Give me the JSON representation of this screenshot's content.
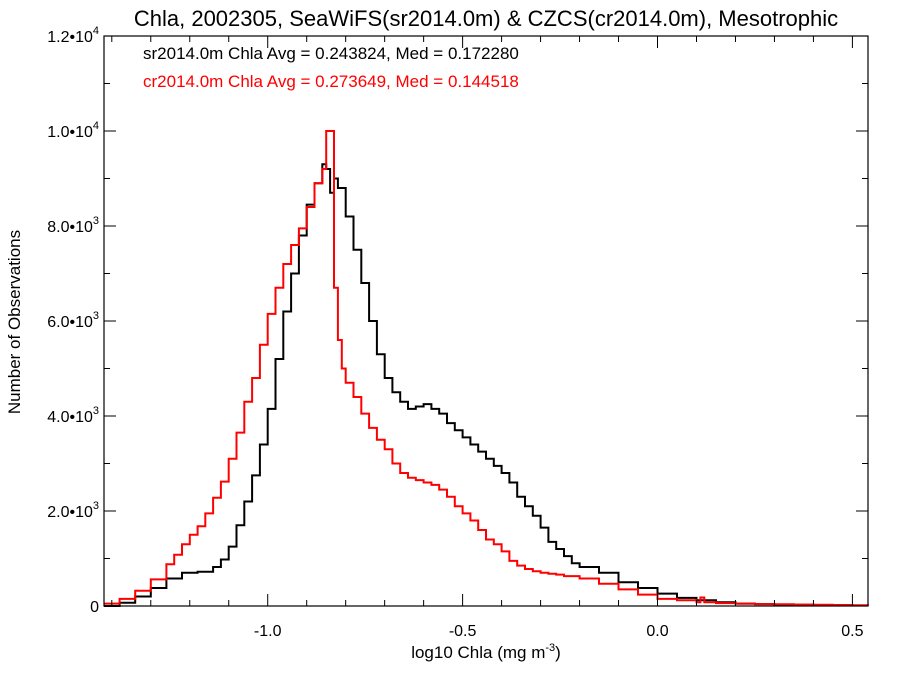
{
  "chart_data": {
    "type": "line",
    "title": "Chla, 2002305, SeaWiFS(sr2014.0m) & CZCS(cr2014.0m), Mesotrophic",
    "xlabel": "log10 Chla (mg m",
    "xlabel_sup": "-3",
    "xlabel_close": ")",
    "ylabel": "Number of Observations",
    "xlim": [
      -1.42,
      0.54
    ],
    "ylim": [
      0,
      12000
    ],
    "x_ticks": [
      {
        "value": -1.0,
        "label": "-1.0"
      },
      {
        "value": -0.5,
        "label": "-0.5"
      },
      {
        "value": 0.0,
        "label": "0.0"
      },
      {
        "value": 0.5,
        "label": "0.5"
      }
    ],
    "y_ticks": [
      {
        "value": 0,
        "label": "0",
        "sup": ""
      },
      {
        "value": 2000,
        "label": "2.0•10",
        "sup": "3"
      },
      {
        "value": 4000,
        "label": "4.0•10",
        "sup": "3"
      },
      {
        "value": 6000,
        "label": "6.0•10",
        "sup": "3"
      },
      {
        "value": 8000,
        "label": "8.0•10",
        "sup": "3"
      },
      {
        "value": 10000,
        "label": "1.0•10",
        "sup": "4"
      },
      {
        "value": 12000,
        "label": "1.2•10",
        "sup": "4"
      }
    ],
    "annotations": [
      {
        "text": "sr2014.0m Chla Avg = 0.243824, Med = 0.172280",
        "color": "#000000"
      },
      {
        "text": "cr2014.0m Chla Avg = 0.273649, Med = 0.144518",
        "color": "#ff0000"
      }
    ],
    "series": [
      {
        "color": "#000000",
        "style": "step",
        "x": [
          -1.42,
          -1.38,
          -1.34,
          -1.3,
          -1.26,
          -1.22,
          -1.18,
          -1.14,
          -1.12,
          -1.1,
          -1.08,
          -1.06,
          -1.04,
          -1.02,
          -1.0,
          -0.98,
          -0.96,
          -0.94,
          -0.92,
          -0.9,
          -0.88,
          -0.86,
          -0.85,
          -0.84,
          -0.83,
          -0.82,
          -0.8,
          -0.78,
          -0.76,
          -0.74,
          -0.72,
          -0.7,
          -0.68,
          -0.66,
          -0.64,
          -0.62,
          -0.6,
          -0.58,
          -0.56,
          -0.54,
          -0.52,
          -0.5,
          -0.48,
          -0.46,
          -0.44,
          -0.42,
          -0.4,
          -0.38,
          -0.36,
          -0.34,
          -0.32,
          -0.3,
          -0.28,
          -0.26,
          -0.24,
          -0.22,
          -0.2,
          -0.15,
          -0.1,
          -0.05,
          0.0,
          0.05,
          0.1,
          0.15,
          0.2,
          0.25,
          0.3,
          0.35,
          0.4,
          0.45,
          0.5,
          0.54
        ],
        "y": [
          0,
          70,
          200,
          380,
          580,
          700,
          720,
          820,
          980,
          1250,
          1700,
          2200,
          2750,
          3400,
          4150,
          5200,
          6200,
          7000,
          7800,
          8450,
          8900,
          9300,
          9200,
          8700,
          9000,
          8800,
          8200,
          7500,
          6800,
          6000,
          5300,
          4800,
          4500,
          4300,
          4150,
          4200,
          4250,
          4150,
          4050,
          3850,
          3700,
          3550,
          3400,
          3250,
          3100,
          2950,
          2800,
          2600,
          2300,
          2100,
          1900,
          1650,
          1350,
          1200,
          1050,
          900,
          820,
          700,
          500,
          380,
          260,
          170,
          120,
          80,
          50,
          40,
          30,
          25,
          20,
          15,
          10,
          10
        ]
      },
      {
        "color": "#ff0000",
        "style": "step",
        "x": [
          -1.42,
          -1.38,
          -1.34,
          -1.3,
          -1.26,
          -1.24,
          -1.22,
          -1.2,
          -1.18,
          -1.16,
          -1.14,
          -1.12,
          -1.1,
          -1.08,
          -1.06,
          -1.04,
          -1.02,
          -1.0,
          -0.98,
          -0.96,
          -0.94,
          -0.92,
          -0.9,
          -0.88,
          -0.86,
          -0.85,
          -0.84,
          -0.83,
          -0.82,
          -0.81,
          -0.8,
          -0.78,
          -0.76,
          -0.74,
          -0.72,
          -0.7,
          -0.68,
          -0.66,
          -0.64,
          -0.62,
          -0.6,
          -0.58,
          -0.56,
          -0.54,
          -0.52,
          -0.5,
          -0.48,
          -0.46,
          -0.44,
          -0.42,
          -0.4,
          -0.38,
          -0.36,
          -0.34,
          -0.32,
          -0.3,
          -0.28,
          -0.26,
          -0.24,
          -0.2,
          -0.15,
          -0.1,
          -0.05,
          0.0,
          0.05,
          0.1,
          0.11,
          0.12,
          0.15,
          0.2,
          0.25,
          0.3,
          0.35,
          0.4,
          0.45,
          0.5,
          0.54
        ],
        "y": [
          50,
          150,
          320,
          560,
          880,
          1080,
          1300,
          1500,
          1680,
          1950,
          2280,
          2620,
          3100,
          3650,
          4300,
          4800,
          5500,
          6150,
          6700,
          7200,
          7600,
          7950,
          8400,
          8900,
          9200,
          10000,
          10000,
          6700,
          5600,
          5000,
          4700,
          4400,
          4050,
          3750,
          3500,
          3300,
          3000,
          2800,
          2700,
          2650,
          2600,
          2550,
          2450,
          2300,
          2100,
          1950,
          1800,
          1600,
          1400,
          1300,
          1150,
          950,
          850,
          780,
          730,
          700,
          680,
          660,
          630,
          580,
          470,
          350,
          240,
          150,
          120,
          80,
          180,
          80,
          60,
          50,
          40,
          35,
          30,
          25,
          20,
          15,
          10
        ]
      }
    ]
  }
}
